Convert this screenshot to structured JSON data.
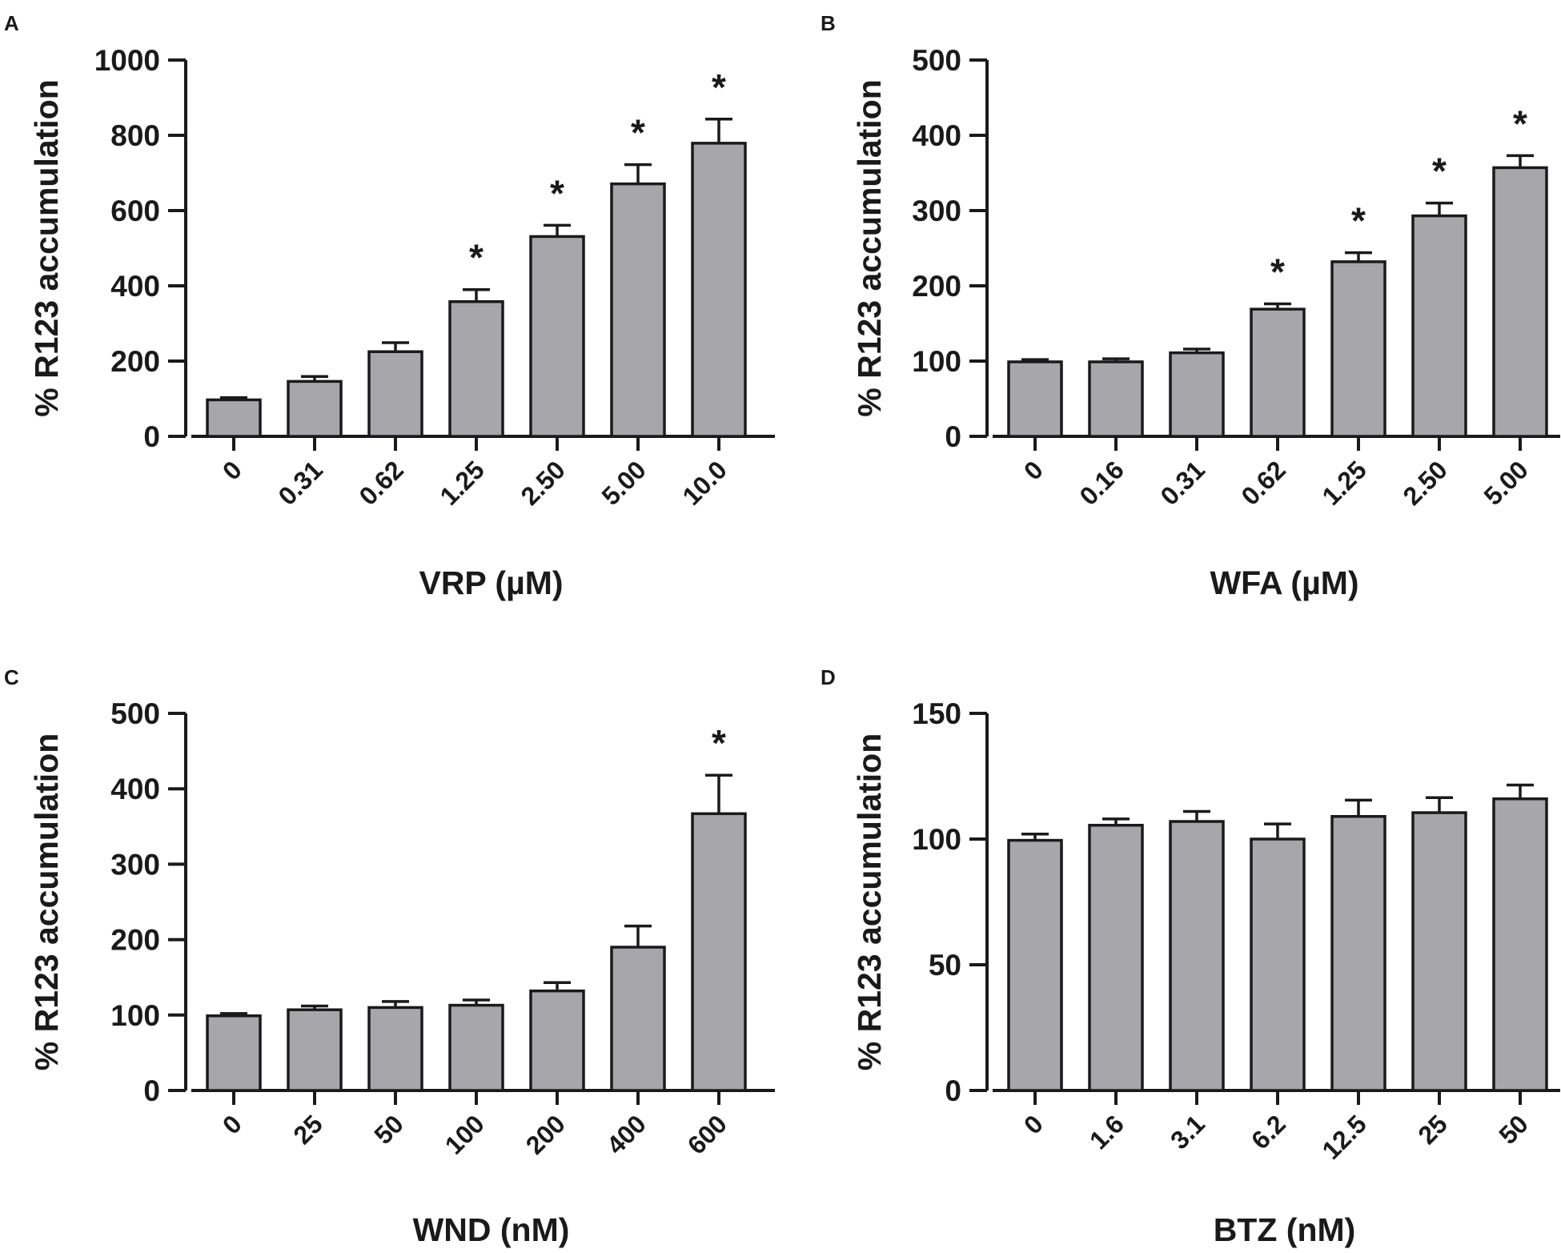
{
  "colors": {
    "bar": "#a7a6ab",
    "stroke": "#1a1a1a",
    "background": "#ffffff"
  },
  "chart_data": [
    {
      "type": "bar",
      "panel": "A",
      "ylabel": "% R123 accumulation",
      "xlabel": "VRP (µM)",
      "ylim": [
        0,
        1000
      ],
      "yticks": [
        0,
        200,
        400,
        600,
        800,
        1000
      ],
      "ytick_labels": [
        "0",
        "200",
        "400",
        "600",
        "800",
        "1000"
      ],
      "categories": [
        "0",
        "0.31",
        "0.62",
        "1.25",
        "2.50",
        "5.00",
        "10.0"
      ],
      "values": [
        97,
        146,
        225,
        358,
        531,
        671,
        779
      ],
      "errors": [
        6,
        13,
        24,
        32,
        30,
        51,
        64
      ],
      "significance": [
        "",
        "",
        "",
        "*",
        "*",
        "*",
        "*"
      ]
    },
    {
      "type": "bar",
      "panel": "B",
      "ylabel": "% R123 accumulation",
      "xlabel": "WFA (µM)",
      "ylim": [
        0,
        500
      ],
      "yticks": [
        0,
        100,
        200,
        300,
        400,
        500
      ],
      "ytick_labels": [
        "0",
        "100",
        "200",
        "300",
        "400",
        "500"
      ],
      "categories": [
        "0",
        "0.16",
        "0.31",
        "0.62",
        "1.25",
        "2.50",
        "5.00"
      ],
      "values": [
        99,
        99,
        111,
        169,
        232,
        293,
        357
      ],
      "errors": [
        3,
        4,
        5,
        7,
        12,
        17,
        16
      ],
      "significance": [
        "",
        "",
        "",
        "*",
        "*",
        "*",
        "*"
      ]
    },
    {
      "type": "bar",
      "panel": "C",
      "ylabel": "% R123 accumulation",
      "xlabel": "WND (nM)",
      "ylim": [
        0,
        500
      ],
      "yticks": [
        0,
        100,
        200,
        300,
        400,
        500
      ],
      "ytick_labels": [
        "0",
        "100",
        "200",
        "300",
        "400",
        "500"
      ],
      "categories": [
        "0",
        "25",
        "50",
        "100",
        "200",
        "400",
        "600"
      ],
      "values": [
        99,
        107,
        110,
        113,
        132,
        190,
        367
      ],
      "errors": [
        3,
        5,
        8,
        7,
        11,
        28,
        51
      ],
      "significance": [
        "",
        "",
        "",
        "",
        "",
        "",
        "*"
      ]
    },
    {
      "type": "bar",
      "panel": "D",
      "ylabel": "% R123 accumulation",
      "xlabel": "BTZ (nM)",
      "ylim": [
        0,
        150
      ],
      "yticks": [
        0,
        50,
        100,
        150
      ],
      "ytick_labels": [
        "0",
        "50",
        "100",
        "150"
      ],
      "categories": [
        "0",
        "1.6",
        "3.1",
        "6.2",
        "12.5",
        "25",
        "50"
      ],
      "values": [
        99.5,
        105.5,
        107,
        100,
        109,
        110.5,
        116
      ],
      "errors": [
        2.5,
        2.5,
        4,
        6,
        6.5,
        6,
        5.5
      ],
      "significance": [
        "",
        "",
        "",
        "",
        "",
        "",
        ""
      ]
    }
  ]
}
